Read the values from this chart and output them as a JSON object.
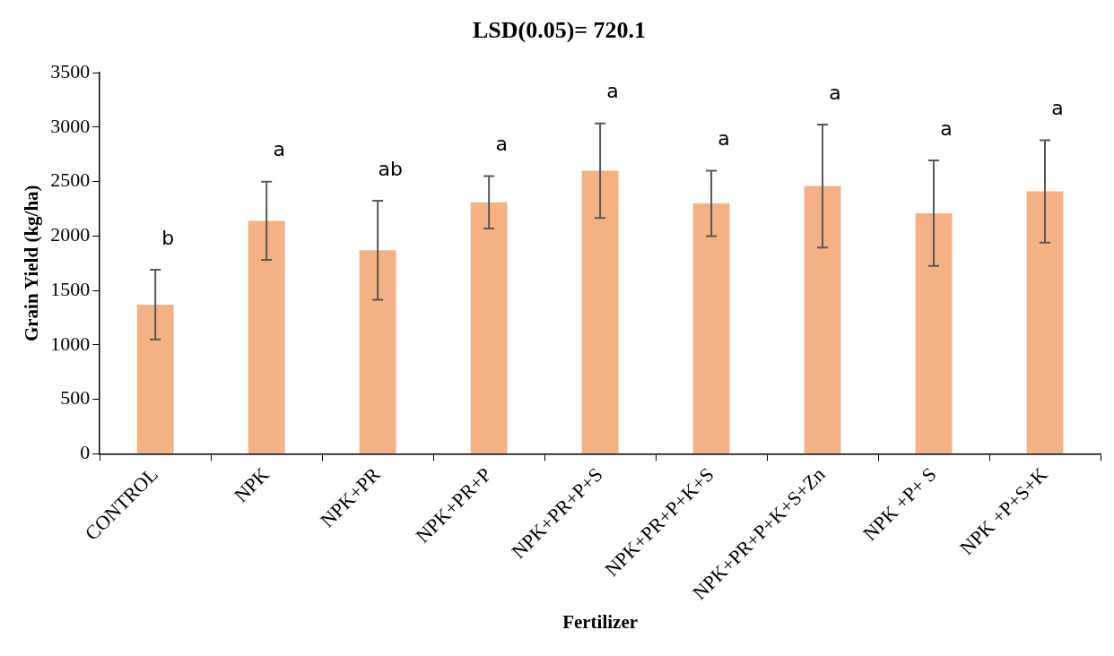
{
  "chart_data": {
    "type": "bar",
    "title": "LSD(0.05)= 720.1",
    "xlabel": "Fertilizer",
    "ylabel": "Grain Yield (kg/ha)",
    "categories": [
      "CONTROL",
      "NPK",
      "NPK+PR",
      "NPK+PR+P",
      "NPK+PR+P+S",
      "NPK+PR+P+K+S",
      "NPK+PR+P+K+S+Zn",
      "NPK +P+ S",
      "NPK +P+S+K"
    ],
    "values": [
      1370,
      2140,
      1870,
      2310,
      2600,
      2300,
      2460,
      2210,
      2410
    ],
    "errors": [
      320,
      360,
      455,
      240,
      435,
      300,
      565,
      485,
      470
    ],
    "color": "#f4b183",
    "ylim": [
      0,
      3500
    ],
    "yticks": [
      0,
      500,
      1000,
      1500,
      2000,
      2500,
      3000,
      3500
    ],
    "grid": false,
    "legend": false,
    "annotations": [
      "b",
      "a",
      "ab",
      "a",
      "a",
      "a",
      "a",
      "a",
      "a"
    ]
  }
}
